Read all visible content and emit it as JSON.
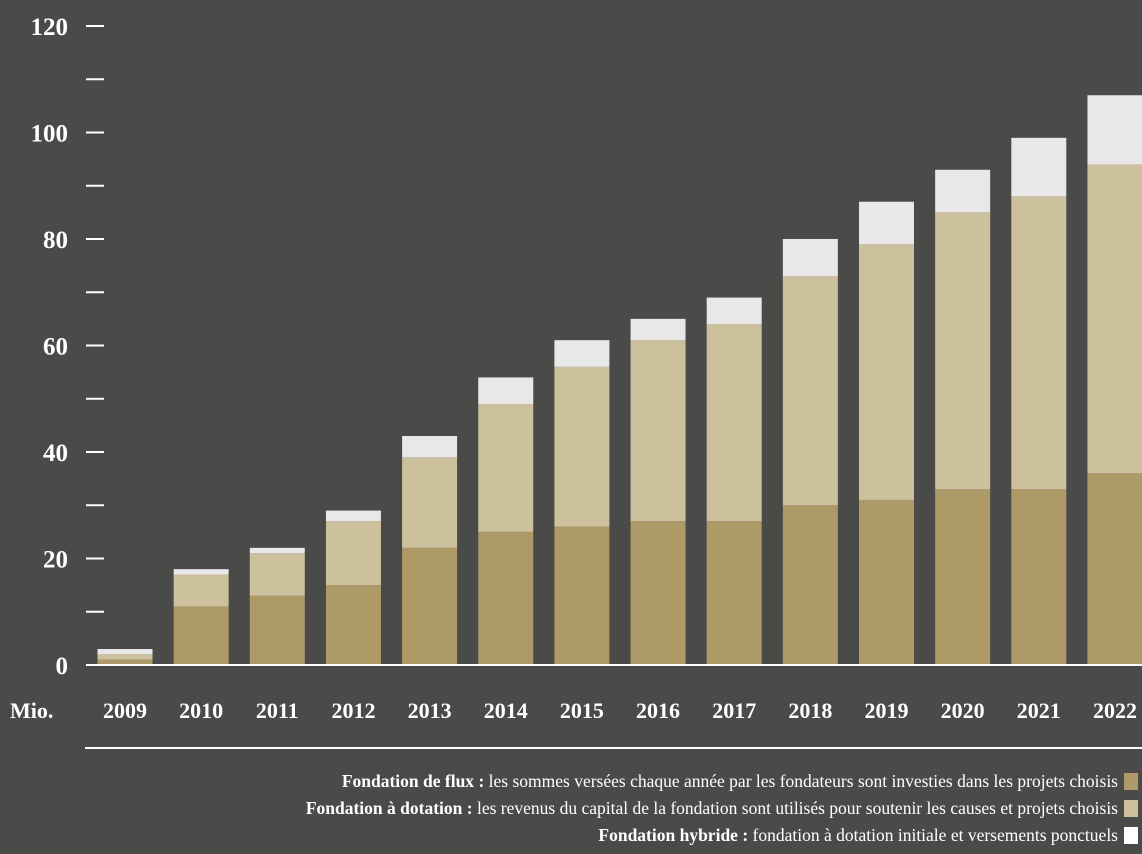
{
  "chart_data": {
    "type": "bar",
    "stacked": true,
    "unit_label": "Mio.",
    "categories": [
      "2009",
      "2010",
      "2011",
      "2012",
      "2013",
      "2014",
      "2015",
      "2016",
      "2017",
      "2018",
      "2019",
      "2020",
      "2021",
      "2022"
    ],
    "series": [
      {
        "name": "Fondation de flux",
        "color": "#ad9a66",
        "values": [
          1,
          11,
          13,
          15,
          22,
          25,
          26,
          27,
          27,
          30,
          31,
          33,
          33,
          36
        ]
      },
      {
        "name": "Fondation à dotation",
        "color": "#cdc09d",
        "values": [
          1,
          6,
          8,
          12,
          17,
          24,
          30,
          34,
          37,
          43,
          48,
          52,
          55,
          58
        ]
      },
      {
        "name": "Fondation hybride",
        "color": "#e8e8e8",
        "values": [
          1,
          1,
          1,
          2,
          4,
          5,
          5,
          4,
          5,
          7,
          8,
          8,
          11,
          13
        ]
      }
    ],
    "ylim": [
      0,
      120
    ],
    "y_ticks": [
      "0",
      "20",
      "40",
      "60",
      "80",
      "100",
      "120"
    ],
    "minor_tick_step": 10,
    "grid": false
  },
  "legend": {
    "items": [
      {
        "name": "Fondation de flux",
        "sep": " : ",
        "desc": "les sommes versées chaque année par les fondateurs sont investies dans les projets choisis",
        "color": "#ad9a66"
      },
      {
        "name": "Fondation à dotation",
        "sep": " : ",
        "desc": "les revenus du capital de la fondation sont utilisés pour soutenir les causes et projets choisis",
        "color": "#cdc09d"
      },
      {
        "name": "Fondation hybride",
        "sep": " : ",
        "desc": "fondation à dotation initiale et versements ponctuels",
        "color": "#ffffff"
      }
    ]
  },
  "colors": {
    "background": "#4a4a48",
    "axis": "#ffffff",
    "text": "#ffffff"
  }
}
